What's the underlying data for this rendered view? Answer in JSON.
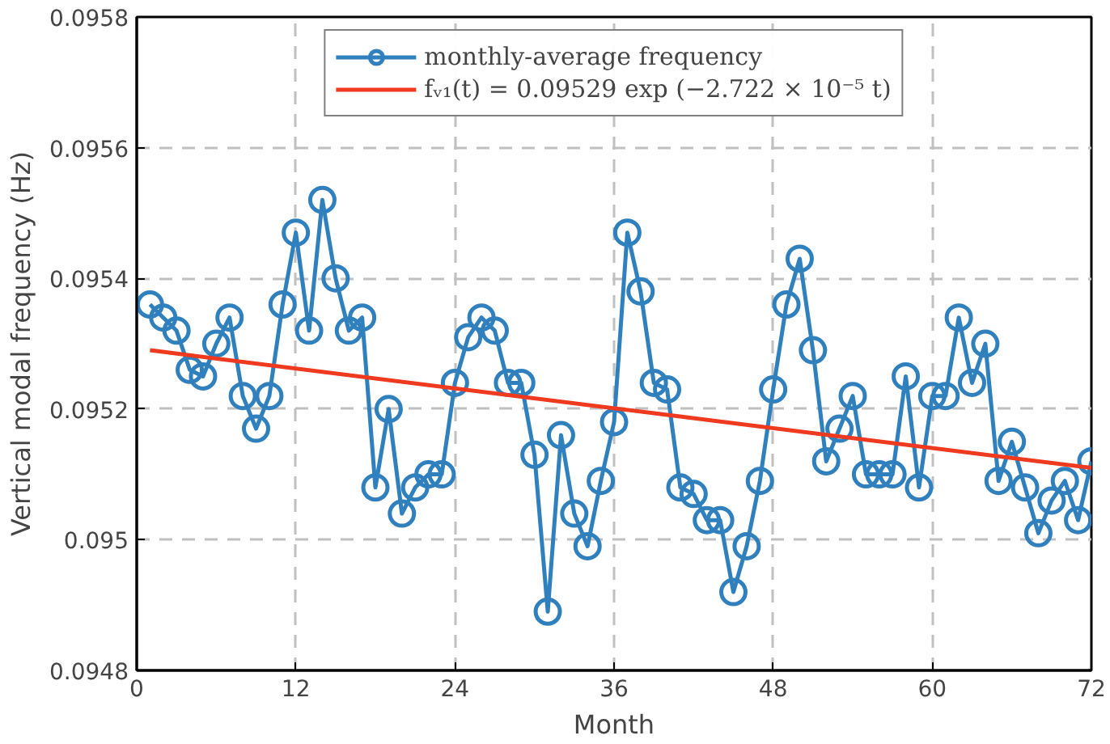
{
  "chart_data": {
    "type": "line",
    "xlabel": "Month",
    "ylabel": "Vertical modal frequency (Hz)",
    "xlim": [
      0,
      72
    ],
    "ylim": [
      0.0948,
      0.0958
    ],
    "xticks": [
      0,
      12,
      24,
      36,
      48,
      60,
      72
    ],
    "yticks": [
      0.0948,
      0.095,
      0.0952,
      0.0954,
      0.0956,
      0.0958
    ],
    "grid": true,
    "legend": "top",
    "marker": "circle",
    "x": [
      1,
      2,
      3,
      4,
      5,
      6,
      7,
      8,
      9,
      10,
      11,
      12,
      13,
      14,
      15,
      16,
      17,
      18,
      19,
      20,
      21,
      22,
      23,
      24,
      25,
      26,
      27,
      28,
      29,
      30,
      31,
      32,
      33,
      34,
      35,
      36,
      37,
      38,
      39,
      40,
      41,
      42,
      43,
      44,
      45,
      46,
      47,
      48,
      49,
      50,
      51,
      52,
      53,
      54,
      55,
      56,
      57,
      58,
      59,
      60,
      61,
      62,
      63,
      64,
      65,
      66,
      67,
      68,
      69,
      70,
      71,
      72
    ],
    "series": [
      {
        "name": "monthly-average frequency",
        "color": "#3080bd",
        "values": [
          0.09536,
          0.09534,
          0.09532,
          0.09526,
          0.09525,
          0.0953,
          0.09534,
          0.09522,
          0.09517,
          0.09522,
          0.09536,
          0.09547,
          0.09532,
          0.09552,
          0.0954,
          0.09532,
          0.09534,
          0.09508,
          0.0952,
          0.09504,
          0.09508,
          0.0951,
          0.0951,
          0.09524,
          0.09531,
          0.09534,
          0.09532,
          0.09524,
          0.09524,
          0.09513,
          0.09489,
          0.09516,
          0.09504,
          0.09499,
          0.09509,
          0.09518,
          0.09547,
          0.09538,
          0.09524,
          0.09523,
          0.09508,
          0.09507,
          0.09503,
          0.09503,
          0.09492,
          0.09499,
          0.09509,
          0.09523,
          0.09536,
          0.09543,
          0.09529,
          0.09512,
          0.09517,
          0.09522,
          0.0951,
          0.0951,
          0.0951,
          0.09525,
          0.09508,
          0.09522,
          0.09522,
          0.09534,
          0.09524,
          0.0953,
          0.09509,
          0.09515,
          0.09508,
          0.09501,
          0.09506,
          0.09509,
          0.09503,
          0.09512
        ]
      },
      {
        "name": "fᵥ₁(t) = 0.09529 exp (−2.722 × 10⁻⁵ t)",
        "color": "#f03a20",
        "marker": "none",
        "x": [
          1,
          72
        ],
        "values": [
          0.09529,
          0.09511
        ]
      }
    ]
  }
}
